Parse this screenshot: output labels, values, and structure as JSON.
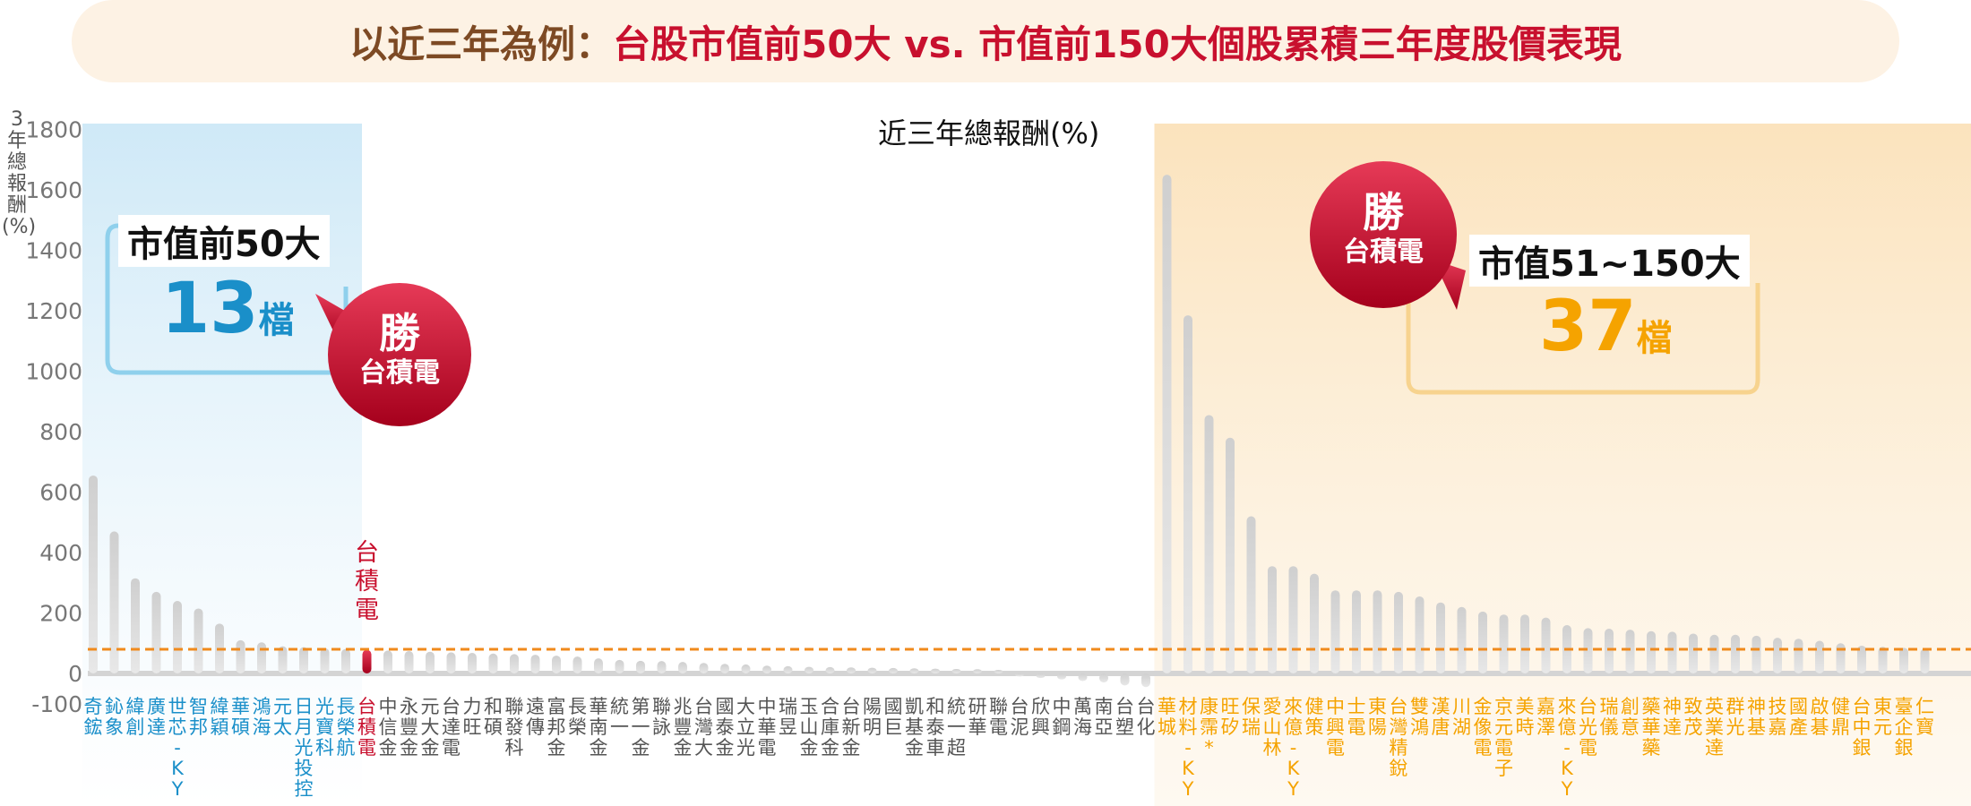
{
  "title": {
    "prefix": "以近三年為例：",
    "main": "台股市值前50大 vs. 市值前150大個股累積三年度股價表現"
  },
  "chart_label": "近三年總報酬(%)",
  "y_axis_label_chars": [
    "3",
    "年",
    "總",
    "報",
    "酬",
    "(%)"
  ],
  "callout_top50": {
    "label": "市值前50大",
    "count": "13",
    "unit": "檔"
  },
  "callout_51_150": {
    "label": "市值51~150大",
    "count": "37",
    "unit": "檔"
  },
  "win_badge": {
    "line1": "勝",
    "line2": "台積電"
  },
  "tsmc_label": "台積電",
  "colors": {
    "top50": "#1a8fc9",
    "mid": "#f5a300",
    "tsmc": "#c8102e",
    "bar": "#cfcfcf",
    "threshold": "#f08a1c"
  },
  "chart_data": {
    "type": "bar",
    "ylim": [
      -100,
      1800
    ],
    "yticks": [
      -100,
      0,
      200,
      400,
      600,
      800,
      1000,
      1200,
      1400,
      1600,
      1800
    ],
    "threshold_line": 80,
    "categories": [
      "奇鋐",
      "鈊象",
      "緯創",
      "廣達",
      "世芯-KY",
      "智邦",
      "緯穎",
      "華碩",
      "鴻海",
      "元太",
      "日月光投控",
      "光寶科",
      "長榮航",
      "台積電",
      "中信金",
      "永豐金",
      "元大金",
      "台達電",
      "力旺",
      "和碩",
      "聯發科",
      "遠傳",
      "富邦金",
      "長榮",
      "華南金",
      "統一",
      "第一金",
      "聯詠",
      "兆豐金",
      "台灣大",
      "國泰金",
      "大立光",
      "中華電",
      "瑞昱",
      "玉山金",
      "合庫金",
      "台新金",
      "陽明",
      "國巨",
      "凱基金",
      "和泰車",
      "統一超",
      "研華",
      "聯電",
      "台泥",
      "欣興",
      "中鋼",
      "萬海",
      "南亞",
      "台塑",
      "台化",
      "華城",
      "材料-KY",
      "康霈*",
      "旺矽",
      "保瑞",
      "愛山林",
      "來億-KY",
      "健策",
      "中興電",
      "士電",
      "東陽",
      "台灣精銳",
      "雙鴻",
      "漢唐",
      "川湖",
      "金像電",
      "京元電子",
      "美時",
      "嘉澤",
      "來億-KY",
      "台光電",
      "瑞儀",
      "創意",
      "藥華藥",
      "神達",
      "致茂",
      "英業達",
      "群光",
      "神基",
      "技嘉",
      "國產",
      "啟碁",
      "健鼎",
      "台中銀",
      "東元",
      "臺企銀",
      "仁寶"
    ],
    "values": [
      655,
      470,
      315,
      270,
      240,
      215,
      165,
      110,
      103,
      90,
      87,
      84,
      81,
      78,
      76,
      74,
      72,
      70,
      68,
      66,
      64,
      62,
      59,
      56,
      50,
      45,
      42,
      41,
      38,
      35,
      32,
      30,
      26,
      24,
      22,
      21,
      20,
      19,
      18,
      17,
      16,
      15,
      14,
      12,
      -10,
      -15,
      -20,
      -25,
      -30,
      -40,
      -45,
      1650,
      1185,
      855,
      780,
      520,
      355,
      355,
      330,
      275,
      275,
      275,
      270,
      255,
      235,
      220,
      205,
      195,
      195,
      185,
      160,
      150,
      148,
      145,
      140,
      138,
      132,
      128,
      128,
      125,
      118,
      115,
      108,
      100,
      92,
      88,
      85,
      82
    ],
    "groups": [
      {
        "name": "top50_winners",
        "start": 0,
        "end": 12
      },
      {
        "name": "tsmc",
        "start": 13,
        "end": 13
      },
      {
        "name": "mid_winners",
        "start": 51,
        "end": 87
      }
    ]
  }
}
